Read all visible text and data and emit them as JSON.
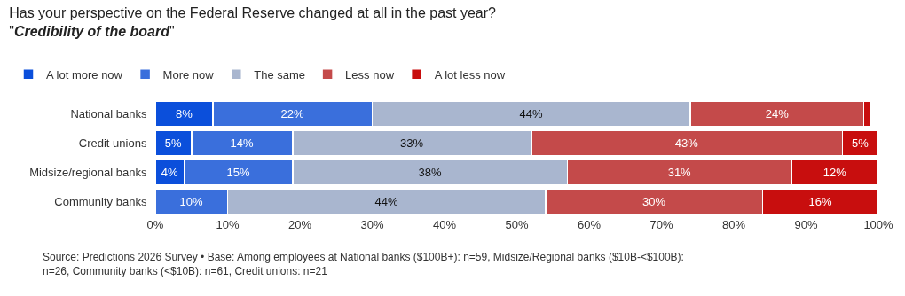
{
  "chart_data": {
    "type": "bar",
    "orientation": "horizontal",
    "stacked": true,
    "title": "Has your perspective on the Federal Reserve changed at all in the past year?",
    "subtitle": "\"Credibility of the board\"",
    "categories": [
      "National banks",
      "Credit unions",
      "Midsize/regional banks",
      "Community banks"
    ],
    "series": [
      {
        "name": "A lot more now",
        "color": "#0b4fdb",
        "values": [
          8,
          5,
          4,
          null
        ],
        "value_labels": [
          "8%",
          "5%",
          "4%",
          null
        ]
      },
      {
        "name": "More now",
        "color": "#3a6fdc",
        "values": [
          22,
          14,
          15,
          10
        ],
        "value_labels": [
          "22%",
          "14%",
          "15%",
          "10%"
        ]
      },
      {
        "name": "The same",
        "color": "#a9b6cf",
        "values": [
          44,
          33,
          38,
          44
        ],
        "value_labels": [
          "44%",
          "33%",
          "38%",
          "44%"
        ]
      },
      {
        "name": "Less now",
        "color": "#c44a4a",
        "values": [
          24,
          43,
          31,
          30
        ],
        "value_labels": [
          "24%",
          "43%",
          "31%",
          "30%"
        ]
      },
      {
        "name": "A lot less now",
        "color": "#c80e0e",
        "values": [
          1,
          5,
          12,
          16
        ],
        "value_labels": [
          null,
          "5%",
          "12%",
          "16%"
        ]
      }
    ],
    "xlim": [
      0,
      100
    ],
    "xticks": [
      {
        "value": 0,
        "label": "0%"
      },
      {
        "value": 10,
        "label": "10%"
      },
      {
        "value": 20,
        "label": "20%"
      },
      {
        "value": 30,
        "label": "30%"
      },
      {
        "value": 40,
        "label": "40%"
      },
      {
        "value": 50,
        "label": "50%"
      },
      {
        "value": 60,
        "label": "60%"
      },
      {
        "value": 70,
        "label": "70%"
      },
      {
        "value": 80,
        "label": "80%"
      },
      {
        "value": 90,
        "label": "90%"
      },
      {
        "value": 100,
        "label": "100%"
      }
    ],
    "legend": "top left",
    "annotations": [
      "Source: Predictions 2026 Survey • Base: Among employees at National banks ($100B+): n=59, Midsize/Regional banks ($10B-<$100B): n=26, Community banks (<$10B): n=61, Credit unions: n=21"
    ]
  }
}
